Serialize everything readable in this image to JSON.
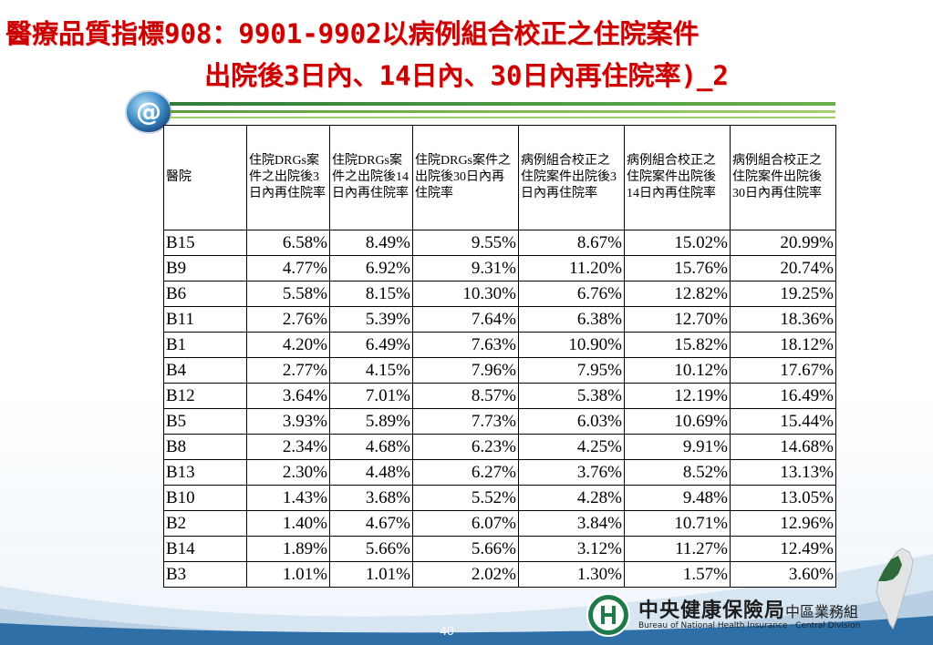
{
  "slide": {
    "title_line1": "醫療品質指標908：9901-9902以病例組合校正之住院案件",
    "title_line2": "出院後3日內、14日內、30日內再住院率)_2",
    "page_number": "40",
    "colors": {
      "title": "#cc0000",
      "accent_green": "#2e7d3a",
      "footer_band": "#2f6fa8"
    }
  },
  "table": {
    "headers": [
      "醫院",
      "住院DRGs案件之出院後3日內再住院率",
      "住院DRGs案件之出院後14日內再住院率",
      "住院DRGs案件之出院後30日內再住院率",
      "病例組合校正之住院案件出院後3日內再住院率",
      "病例組合校正之住院案件出院後14日內再住院率",
      "病例組合校正之住院案件出院後30日內再住院率"
    ],
    "rows": [
      [
        "B15",
        "6.58%",
        "8.49%",
        "9.55%",
        "8.67%",
        "15.02%",
        "20.99%"
      ],
      [
        "B9",
        "4.77%",
        "6.92%",
        "9.31%",
        "11.20%",
        "15.76%",
        "20.74%"
      ],
      [
        "B6",
        "5.58%",
        "8.15%",
        "10.30%",
        "6.76%",
        "12.82%",
        "19.25%"
      ],
      [
        "B11",
        "2.76%",
        "5.39%",
        "7.64%",
        "6.38%",
        "12.70%",
        "18.36%"
      ],
      [
        "B1",
        "4.20%",
        "6.49%",
        "7.63%",
        "10.90%",
        "15.82%",
        "18.12%"
      ],
      [
        "B4",
        "2.77%",
        "4.15%",
        "7.96%",
        "7.95%",
        "10.12%",
        "17.67%"
      ],
      [
        "B12",
        "3.64%",
        "7.01%",
        "8.57%",
        "5.38%",
        "12.19%",
        "16.49%"
      ],
      [
        "B5",
        "3.93%",
        "5.89%",
        "7.73%",
        "6.03%",
        "10.69%",
        "15.44%"
      ],
      [
        "B8",
        "2.34%",
        "4.68%",
        "6.23%",
        "4.25%",
        "9.91%",
        "14.68%"
      ],
      [
        "B13",
        "2.30%",
        "4.48%",
        "6.27%",
        "3.76%",
        "8.52%",
        "13.13%"
      ],
      [
        "B10",
        "1.43%",
        "3.68%",
        "5.52%",
        "4.28%",
        "9.48%",
        "13.05%"
      ],
      [
        "B2",
        "1.40%",
        "4.67%",
        "6.07%",
        "3.84%",
        "10.71%",
        "12.96%"
      ],
      [
        "B14",
        "1.89%",
        "5.66%",
        "5.66%",
        "3.12%",
        "11.27%",
        "12.49%"
      ],
      [
        "B3",
        "1.01%",
        "1.01%",
        "2.02%",
        "1.30%",
        "1.57%",
        "3.60%"
      ]
    ]
  },
  "footer": {
    "org_name": "中央健康保險局",
    "division": "中區業務組",
    "org_name_en": "Bureau of National Health Insurance · Central Division"
  },
  "icons": {
    "logo": "at-sign-globe-icon",
    "org_logo": "nhi-emblem-icon",
    "map": "taiwan-map-icon"
  }
}
